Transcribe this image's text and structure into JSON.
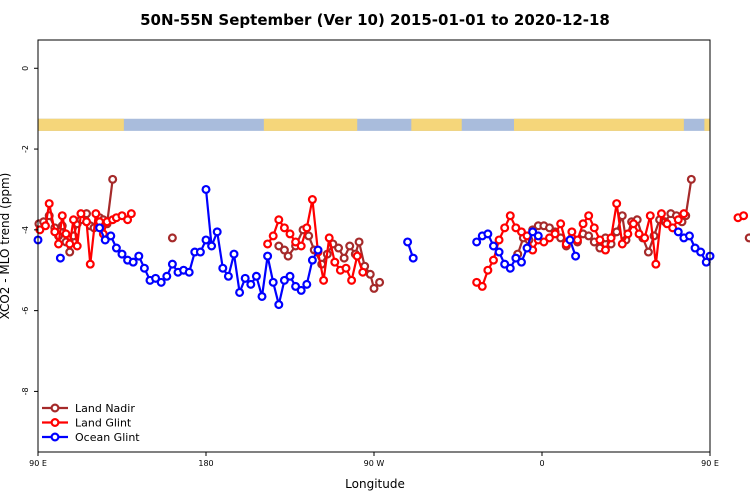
{
  "chart_data": {
    "type": "line",
    "title": "50N-55N September (Ver 10)   2015-01-01 to 2020-12-18",
    "xlabel": "Longitude",
    "ylabel": "XCO2 - MLO trend (ppm)",
    "xlim": [
      90,
      450
    ],
    "ylim": [
      -9.5,
      0.7
    ],
    "x_ticks": [
      {
        "value": 90,
        "label": "90 E"
      },
      {
        "value": 180,
        "label": "180"
      },
      {
        "value": 270,
        "label": "90 W"
      },
      {
        "value": 360,
        "label": "0"
      },
      {
        "value": 450,
        "label": "90 E"
      },
      {
        "value": 540,
        "label": "180"
      }
    ],
    "y_ticks": [
      0,
      -2,
      -4,
      -6,
      -8
    ],
    "land_mask_band": {
      "y_top": -1.25,
      "y_bottom": -1.55,
      "ocean_color": "#a9bcdc",
      "land_color": "#f5d67a"
    },
    "legend_position": "bottom-left",
    "series": [
      {
        "name": "Land Nadir",
        "color": "#a52a2a",
        "segments": [
          [
            [
              90.5,
              -3.85
            ],
            [
              93,
              -3.8
            ],
            [
              96,
              -3.65
            ],
            [
              99,
              -3.95
            ],
            [
              101,
              -4.15
            ],
            [
              103,
              -3.9
            ],
            [
              105,
              -4.3
            ],
            [
              107,
              -4.55
            ],
            [
              109,
              -4.15
            ],
            [
              111,
              -3.85
            ],
            [
              113,
              -3.75
            ],
            [
              116,
              -3.6
            ],
            [
              118,
              -3.9
            ],
            [
              120,
              -3.95
            ],
            [
              123,
              -3.7
            ],
            [
              125,
              -3.75
            ],
            [
              127,
              -3.85
            ],
            [
              130,
              -2.75
            ]
          ],
          [
            [
              162,
              -4.2
            ]
          ],
          [
            [
              219,
              -4.4
            ],
            [
              222,
              -4.5
            ],
            [
              224,
              -4.65
            ],
            [
              228,
              -4.4
            ],
            [
              232,
              -4.0
            ],
            [
              235,
              -4.15
            ],
            [
              238,
              -4.5
            ],
            [
              242,
              -4.85
            ],
            [
              245,
              -4.6
            ],
            [
              248,
              -4.35
            ],
            [
              251,
              -4.45
            ],
            [
              254,
              -4.7
            ],
            [
              257,
              -4.4
            ],
            [
              260,
              -4.6
            ],
            [
              262,
              -4.3
            ],
            [
              265,
              -4.9
            ],
            [
              268,
              -5.1
            ],
            [
              270,
              -5.45
            ],
            [
              273,
              -5.3
            ]
          ],
          [
            [
              347,
              -4.6
            ],
            [
              350,
              -4.2
            ],
            [
              353,
              -4.25
            ],
            [
              355,
              -4.0
            ],
            [
              358,
              -3.9
            ],
            [
              361,
              -3.9
            ],
            [
              364,
              -3.95
            ],
            [
              367,
              -4.05
            ],
            [
              370,
              -4.2
            ],
            [
              373,
              -4.4
            ],
            [
              376,
              -4.2
            ],
            [
              379,
              -4.3
            ],
            [
              382,
              -4.1
            ],
            [
              385,
              -4.15
            ],
            [
              388,
              -4.3
            ],
            [
              391,
              -4.45
            ],
            [
              394,
              -4.2
            ],
            [
              397,
              -4.35
            ],
            [
              400,
              -4.05
            ],
            [
              403,
              -3.65
            ],
            [
              405,
              -4.25
            ],
            [
              408,
              -3.8
            ],
            [
              411,
              -3.75
            ],
            [
              414,
              -4.2
            ],
            [
              417,
              -4.55
            ],
            [
              420,
              -4.15
            ],
            [
              423,
              -3.75
            ],
            [
              426,
              -3.8
            ],
            [
              429,
              -3.6
            ],
            [
              432,
              -3.65
            ],
            [
              435,
              -3.8
            ],
            [
              437,
              -3.65
            ],
            [
              440,
              -2.75
            ]
          ],
          [
            [
              471,
              -4.2
            ]
          ]
        ]
      },
      {
        "name": "Land Glint",
        "color": "#ff0000",
        "segments": [
          [
            [
              91,
              -4.0
            ],
            [
              94,
              -3.9
            ],
            [
              96,
              -3.35
            ],
            [
              99,
              -4.05
            ],
            [
              101,
              -4.35
            ],
            [
              103,
              -3.65
            ],
            [
              105,
              -4.1
            ],
            [
              107,
              -4.35
            ],
            [
              109,
              -3.75
            ],
            [
              111,
              -4.4
            ],
            [
              113,
              -3.6
            ],
            [
              116,
              -3.8
            ],
            [
              118,
              -4.85
            ],
            [
              121,
              -3.6
            ],
            [
              123,
              -3.8
            ],
            [
              125,
              -4.1
            ],
            [
              127,
              -3.8
            ],
            [
              130,
              -3.75
            ],
            [
              132,
              -3.7
            ],
            [
              135,
              -3.65
            ],
            [
              138,
              -3.75
            ],
            [
              140,
              -3.6
            ]
          ],
          [
            [
              213,
              -4.35
            ],
            [
              216,
              -4.15
            ],
            [
              219,
              -3.75
            ],
            [
              222,
              -3.95
            ],
            [
              225,
              -4.1
            ],
            [
              228,
              -4.3
            ],
            [
              231,
              -4.4
            ],
            [
              234,
              -3.95
            ],
            [
              237,
              -3.25
            ],
            [
              240,
              -4.55
            ],
            [
              243,
              -5.25
            ],
            [
              246,
              -4.2
            ],
            [
              249,
              -4.8
            ],
            [
              252,
              -5.0
            ],
            [
              255,
              -4.95
            ],
            [
              258,
              -5.25
            ],
            [
              261,
              -4.65
            ],
            [
              264,
              -5.05
            ]
          ],
          [
            [
              325,
              -5.3
            ],
            [
              328,
              -5.4
            ],
            [
              331,
              -5.0
            ],
            [
              334,
              -4.75
            ],
            [
              337,
              -4.25
            ],
            [
              340,
              -3.95
            ],
            [
              343,
              -3.65
            ],
            [
              346,
              -3.95
            ],
            [
              349,
              -4.05
            ],
            [
              352,
              -4.15
            ],
            [
              355,
              -4.5
            ],
            [
              358,
              -4.25
            ],
            [
              361,
              -4.3
            ],
            [
              364,
              -4.2
            ],
            [
              367,
              -4.1
            ],
            [
              370,
              -3.85
            ],
            [
              373,
              -4.35
            ],
            [
              376,
              -4.05
            ],
            [
              379,
              -4.25
            ],
            [
              382,
              -3.85
            ],
            [
              385,
              -3.65
            ],
            [
              388,
              -3.95
            ],
            [
              391,
              -4.25
            ],
            [
              394,
              -4.5
            ],
            [
              397,
              -4.2
            ],
            [
              400,
              -3.35
            ],
            [
              403,
              -4.35
            ],
            [
              406,
              -4.1
            ],
            [
              409,
              -3.85
            ],
            [
              412,
              -4.1
            ],
            [
              415,
              -4.2
            ],
            [
              418,
              -3.65
            ],
            [
              421,
              -4.85
            ],
            [
              424,
              -3.6
            ],
            [
              427,
              -3.85
            ],
            [
              430,
              -3.95
            ],
            [
              433,
              -3.75
            ],
            [
              436,
              -3.6
            ]
          ],
          [
            [
              465,
              -3.7
            ],
            [
              468,
              -3.65
            ]
          ]
        ]
      },
      {
        "name": "Ocean Glint",
        "color": "#0000ff",
        "segments": [
          [
            [
              90,
              -4.25
            ]
          ],
          [
            [
              102,
              -4.7
            ]
          ],
          [
            [
              123,
              -3.95
            ],
            [
              126,
              -4.25
            ],
            [
              129,
              -4.15
            ],
            [
              132,
              -4.45
            ],
            [
              135,
              -4.6
            ],
            [
              138,
              -4.75
            ],
            [
              141,
              -4.8
            ],
            [
              144,
              -4.65
            ],
            [
              147,
              -4.95
            ],
            [
              150,
              -5.25
            ],
            [
              153,
              -5.2
            ],
            [
              156,
              -5.3
            ],
            [
              159,
              -5.15
            ],
            [
              162,
              -4.85
            ],
            [
              165,
              -5.05
            ],
            [
              168,
              -5.0
            ],
            [
              171,
              -5.05
            ],
            [
              174,
              -4.55
            ],
            [
              177,
              -4.55
            ],
            [
              180,
              -4.25
            ]
          ],
          [
            [
              180,
              -3.0
            ],
            [
              183,
              -4.4
            ],
            [
              186,
              -4.05
            ],
            [
              189,
              -4.95
            ],
            [
              192,
              -5.15
            ],
            [
              195,
              -4.6
            ],
            [
              198,
              -5.55
            ],
            [
              201,
              -5.2
            ],
            [
              204,
              -5.35
            ],
            [
              207,
              -5.15
            ],
            [
              210,
              -5.65
            ],
            [
              213,
              -4.65
            ],
            [
              216,
              -5.3
            ],
            [
              219,
              -5.85
            ],
            [
              222,
              -5.25
            ],
            [
              225,
              -5.15
            ],
            [
              228,
              -5.4
            ],
            [
              231,
              -5.5
            ],
            [
              234,
              -5.35
            ],
            [
              237,
              -4.75
            ],
            [
              240,
              -4.5
            ]
          ],
          [
            [
              288,
              -4.3
            ],
            [
              291,
              -4.7
            ]
          ],
          [
            [
              325,
              -4.3
            ],
            [
              328,
              -4.15
            ],
            [
              331,
              -4.1
            ],
            [
              334,
              -4.4
            ],
            [
              337,
              -4.55
            ],
            [
              340,
              -4.85
            ],
            [
              343,
              -4.95
            ],
            [
              346,
              -4.7
            ],
            [
              349,
              -4.8
            ],
            [
              352,
              -4.45
            ],
            [
              355,
              -4.05
            ],
            [
              358,
              -4.15
            ]
          ],
          [
            [
              375,
              -4.25
            ],
            [
              378,
              -4.65
            ]
          ],
          [
            [
              433,
              -4.05
            ],
            [
              436,
              -4.2
            ],
            [
              439,
              -4.15
            ],
            [
              442,
              -4.45
            ],
            [
              445,
              -4.55
            ],
            [
              448,
              -4.8
            ],
            [
              450,
              -4.65
            ]
          ]
        ]
      }
    ]
  }
}
